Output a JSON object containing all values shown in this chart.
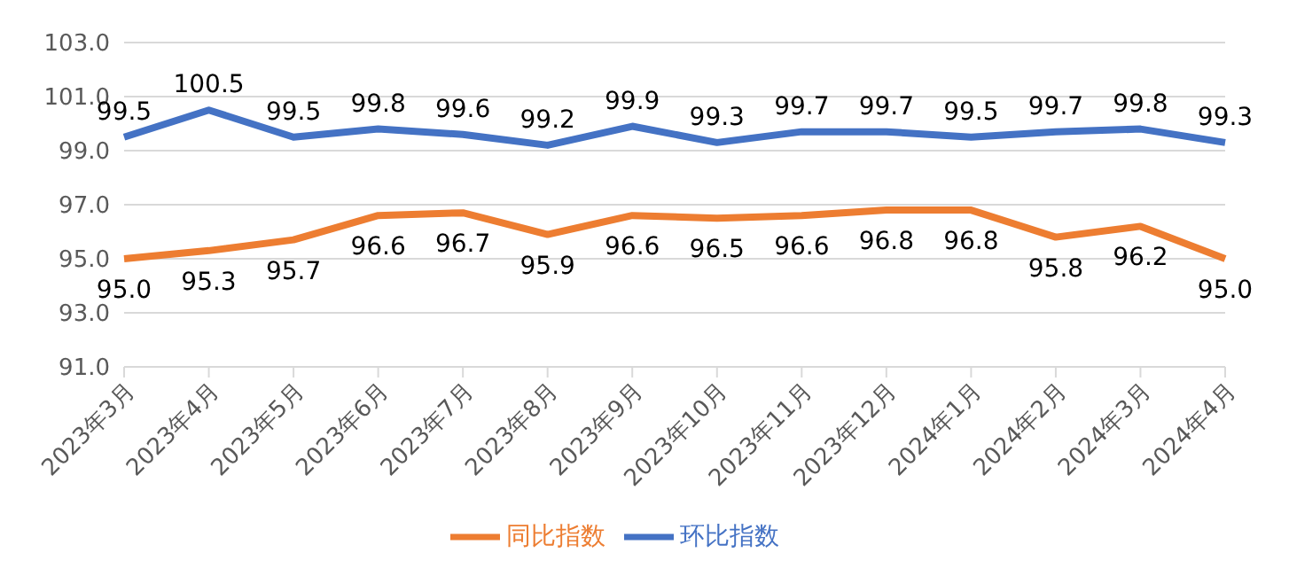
{
  "chart_data": {
    "type": "line",
    "categories": [
      "2023年3月",
      "2023年4月",
      "2023年5月",
      "2023年6月",
      "2023年7月",
      "2023年8月",
      "2023年9月",
      "2023年10月",
      "2023年11月",
      "2023年12月",
      "2024年1月",
      "2024年2月",
      "2024年3月",
      "2024年4月"
    ],
    "series": [
      {
        "name": "环比指数",
        "color": "#4472c4",
        "values": [
          99.5,
          100.5,
          99.5,
          99.8,
          99.6,
          99.2,
          99.9,
          99.3,
          99.7,
          99.7,
          99.5,
          99.7,
          99.8,
          99.3
        ],
        "value_labels": [
          "99.5",
          "100.5",
          "99.5",
          "99.8",
          "99.6",
          "99.2",
          "99.9",
          "99.3",
          "99.7",
          "99.7",
          "99.5",
          "99.7",
          "99.8",
          "99.3"
        ]
      },
      {
        "name": "同比指数",
        "color": "#ed7d31",
        "values": [
          95.0,
          95.3,
          95.7,
          96.6,
          96.7,
          95.9,
          96.6,
          96.5,
          96.6,
          96.8,
          96.8,
          95.8,
          96.2,
          95.0
        ],
        "value_labels": [
          "95.0",
          "95.3",
          "95.7",
          "96.6",
          "96.7",
          "95.9",
          "96.6",
          "96.5",
          "96.6",
          "96.8",
          "96.8",
          "95.8",
          "96.2",
          "95.0"
        ]
      }
    ],
    "ylim": [
      91,
      103
    ],
    "yticks": [
      {
        "value": 91,
        "label": "91.0"
      },
      {
        "value": 93,
        "label": "93.0"
      },
      {
        "value": 95,
        "label": "95.0"
      },
      {
        "value": 97,
        "label": "97.0"
      },
      {
        "value": 99,
        "label": "99.0"
      },
      {
        "value": 101,
        "label": "101.0"
      },
      {
        "value": 103,
        "label": "103.0"
      }
    ],
    "grid": "y",
    "legend": "bottom",
    "marker": "none",
    "line_style": "solid"
  }
}
